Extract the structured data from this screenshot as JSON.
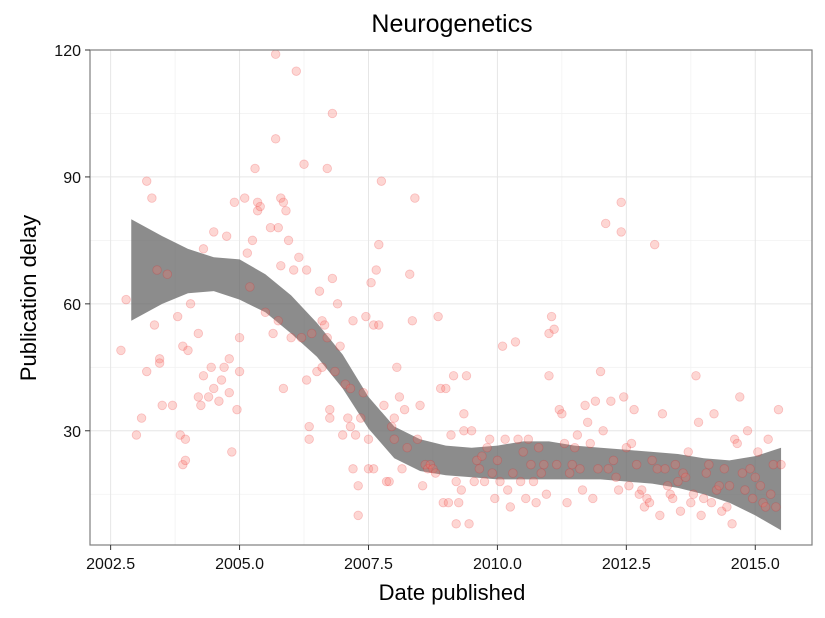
{
  "chart_data": {
    "type": "scatter",
    "title": "Neurogenetics",
    "xlabel": "Date published",
    "ylabel": "Publication delay",
    "xlim": [
      2002.1,
      2016.1
    ],
    "ylim": [
      3,
      120
    ],
    "x_ticks": [
      2002.5,
      2005.0,
      2007.5,
      2010.0,
      2012.5,
      2015.0
    ],
    "x_tick_labels": [
      "2002.5",
      "2005.0",
      "2007.5",
      "2010.0",
      "2012.5",
      "2015.0"
    ],
    "y_ticks": [
      30,
      60,
      90,
      120
    ],
    "y_tick_labels": [
      "30",
      "60",
      "90",
      "120"
    ],
    "grid": true,
    "point_color": "#f8766d",
    "smooth_color": "#666666",
    "points": [
      [
        2002.7,
        49
      ],
      [
        2002.8,
        61
      ],
      [
        2003.0,
        29
      ],
      [
        2003.1,
        33
      ],
      [
        2003.2,
        89
      ],
      [
        2003.2,
        44
      ],
      [
        2003.3,
        85
      ],
      [
        2003.35,
        55
      ],
      [
        2003.4,
        68
      ],
      [
        2003.45,
        47
      ],
      [
        2003.45,
        46
      ],
      [
        2003.5,
        36
      ],
      [
        2003.6,
        67
      ],
      [
        2003.7,
        36
      ],
      [
        2003.8,
        57
      ],
      [
        2003.85,
        29
      ],
      [
        2003.9,
        50
      ],
      [
        2003.9,
        22
      ],
      [
        2003.95,
        23
      ],
      [
        2003.95,
        28
      ],
      [
        2004.0,
        49
      ],
      [
        2004.05,
        60
      ],
      [
        2004.2,
        53
      ],
      [
        2004.2,
        38
      ],
      [
        2004.25,
        36
      ],
      [
        2004.3,
        73
      ],
      [
        2004.3,
        43
      ],
      [
        2004.4,
        38
      ],
      [
        2004.45,
        45
      ],
      [
        2004.5,
        77
      ],
      [
        2004.5,
        40
      ],
      [
        2004.6,
        37
      ],
      [
        2004.65,
        42
      ],
      [
        2004.7,
        45
      ],
      [
        2004.75,
        76
      ],
      [
        2004.8,
        47
      ],
      [
        2004.8,
        39
      ],
      [
        2004.85,
        25
      ],
      [
        2004.9,
        84
      ],
      [
        2004.95,
        35
      ],
      [
        2005.0,
        52
      ],
      [
        2005.0,
        44
      ],
      [
        2005.1,
        85
      ],
      [
        2005.15,
        72
      ],
      [
        2005.2,
        64
      ],
      [
        2005.25,
        75
      ],
      [
        2005.3,
        92
      ],
      [
        2005.35,
        84
      ],
      [
        2005.35,
        82
      ],
      [
        2005.4,
        83
      ],
      [
        2005.5,
        58
      ],
      [
        2005.6,
        78
      ],
      [
        2005.65,
        53
      ],
      [
        2005.7,
        119
      ],
      [
        2005.7,
        99
      ],
      [
        2005.75,
        78
      ],
      [
        2005.75,
        56
      ],
      [
        2005.8,
        85
      ],
      [
        2005.8,
        69
      ],
      [
        2005.85,
        40
      ],
      [
        2005.85,
        84
      ],
      [
        2005.9,
        82
      ],
      [
        2005.95,
        75
      ],
      [
        2006.0,
        52
      ],
      [
        2006.05,
        68
      ],
      [
        2006.1,
        115
      ],
      [
        2006.15,
        71
      ],
      [
        2006.2,
        52
      ],
      [
        2006.25,
        93
      ],
      [
        2006.3,
        68
      ],
      [
        2006.3,
        42
      ],
      [
        2006.35,
        31
      ],
      [
        2006.35,
        28
      ],
      [
        2006.4,
        53
      ],
      [
        2006.5,
        44
      ],
      [
        2006.55,
        63
      ],
      [
        2006.6,
        45
      ],
      [
        2006.6,
        56
      ],
      [
        2006.65,
        55
      ],
      [
        2006.7,
        52
      ],
      [
        2006.7,
        92
      ],
      [
        2006.75,
        35
      ],
      [
        2006.75,
        33
      ],
      [
        2006.8,
        66
      ],
      [
        2006.8,
        105
      ],
      [
        2006.85,
        44
      ],
      [
        2006.9,
        60
      ],
      [
        2006.95,
        50
      ],
      [
        2007.0,
        29
      ],
      [
        2007.05,
        41
      ],
      [
        2007.1,
        33
      ],
      [
        2007.15,
        40
      ],
      [
        2007.15,
        31
      ],
      [
        2007.2,
        56
      ],
      [
        2007.2,
        21
      ],
      [
        2007.25,
        29
      ],
      [
        2007.3,
        17
      ],
      [
        2007.3,
        10
      ],
      [
        2007.35,
        33
      ],
      [
        2007.4,
        39
      ],
      [
        2007.45,
        57
      ],
      [
        2007.5,
        21
      ],
      [
        2007.5,
        28
      ],
      [
        2007.55,
        65
      ],
      [
        2007.6,
        55
      ],
      [
        2007.6,
        21
      ],
      [
        2007.65,
        68
      ],
      [
        2007.7,
        74
      ],
      [
        2007.7,
        55
      ],
      [
        2007.75,
        89
      ],
      [
        2007.8,
        36
      ],
      [
        2007.85,
        18
      ],
      [
        2007.9,
        18
      ],
      [
        2007.95,
        31
      ],
      [
        2008.0,
        33
      ],
      [
        2008.0,
        28
      ],
      [
        2008.05,
        45
      ],
      [
        2008.1,
        38
      ],
      [
        2008.15,
        21
      ],
      [
        2008.2,
        35
      ],
      [
        2008.25,
        26
      ],
      [
        2008.3,
        67
      ],
      [
        2008.35,
        56
      ],
      [
        2008.4,
        85
      ],
      [
        2008.45,
        28
      ],
      [
        2008.5,
        36
      ],
      [
        2008.55,
        17
      ],
      [
        2008.6,
        22
      ],
      [
        2008.65,
        21
      ],
      [
        2008.7,
        22
      ],
      [
        2008.75,
        21
      ],
      [
        2008.8,
        20
      ],
      [
        2008.85,
        57
      ],
      [
        2008.9,
        40
      ],
      [
        2008.95,
        13
      ],
      [
        2009.0,
        40
      ],
      [
        2009.05,
        13
      ],
      [
        2009.1,
        29
      ],
      [
        2009.15,
        43
      ],
      [
        2009.2,
        18
      ],
      [
        2009.2,
        8
      ],
      [
        2009.25,
        13
      ],
      [
        2009.3,
        16
      ],
      [
        2009.35,
        34
      ],
      [
        2009.35,
        30
      ],
      [
        2009.4,
        43
      ],
      [
        2009.45,
        8
      ],
      [
        2009.5,
        30
      ],
      [
        2009.55,
        18
      ],
      [
        2009.6,
        23
      ],
      [
        2009.65,
        21
      ],
      [
        2009.7,
        24
      ],
      [
        2009.75,
        18
      ],
      [
        2009.8,
        26
      ],
      [
        2009.85,
        28
      ],
      [
        2009.9,
        20
      ],
      [
        2009.95,
        14
      ],
      [
        2010.0,
        23
      ],
      [
        2010.05,
        18
      ],
      [
        2010.1,
        50
      ],
      [
        2010.15,
        28
      ],
      [
        2010.2,
        16
      ],
      [
        2010.25,
        12
      ],
      [
        2010.3,
        20
      ],
      [
        2010.35,
        51
      ],
      [
        2010.4,
        28
      ],
      [
        2010.45,
        18
      ],
      [
        2010.5,
        25
      ],
      [
        2010.55,
        14
      ],
      [
        2010.6,
        28
      ],
      [
        2010.65,
        22
      ],
      [
        2010.7,
        18
      ],
      [
        2010.75,
        13
      ],
      [
        2010.8,
        26
      ],
      [
        2010.85,
        20
      ],
      [
        2010.9,
        22
      ],
      [
        2010.95,
        15
      ],
      [
        2011.0,
        53
      ],
      [
        2011.0,
        43
      ],
      [
        2011.05,
        57
      ],
      [
        2011.1,
        54
      ],
      [
        2011.15,
        22
      ],
      [
        2011.2,
        35
      ],
      [
        2011.25,
        34
      ],
      [
        2011.3,
        27
      ],
      [
        2011.35,
        13
      ],
      [
        2011.4,
        20
      ],
      [
        2011.45,
        22
      ],
      [
        2011.5,
        26
      ],
      [
        2011.55,
        29
      ],
      [
        2011.6,
        21
      ],
      [
        2011.65,
        16
      ],
      [
        2011.7,
        36
      ],
      [
        2011.75,
        32
      ],
      [
        2011.8,
        27
      ],
      [
        2011.85,
        14
      ],
      [
        2011.9,
        37
      ],
      [
        2011.95,
        21
      ],
      [
        2012.0,
        44
      ],
      [
        2012.05,
        30
      ],
      [
        2012.1,
        79
      ],
      [
        2012.15,
        21
      ],
      [
        2012.2,
        37
      ],
      [
        2012.25,
        23
      ],
      [
        2012.3,
        19
      ],
      [
        2012.35,
        16
      ],
      [
        2012.4,
        84
      ],
      [
        2012.4,
        77
      ],
      [
        2012.45,
        38
      ],
      [
        2012.5,
        26
      ],
      [
        2012.55,
        17
      ],
      [
        2012.6,
        27
      ],
      [
        2012.65,
        35
      ],
      [
        2012.7,
        22
      ],
      [
        2012.75,
        15
      ],
      [
        2012.8,
        16
      ],
      [
        2012.85,
        12
      ],
      [
        2012.9,
        14
      ],
      [
        2012.95,
        13
      ],
      [
        2013.0,
        23
      ],
      [
        2013.05,
        74
      ],
      [
        2013.1,
        21
      ],
      [
        2013.15,
        10
      ],
      [
        2013.2,
        34
      ],
      [
        2013.25,
        21
      ],
      [
        2013.3,
        17
      ],
      [
        2013.35,
        15
      ],
      [
        2013.4,
        14
      ],
      [
        2013.45,
        22
      ],
      [
        2013.5,
        18
      ],
      [
        2013.55,
        11
      ],
      [
        2013.6,
        20
      ],
      [
        2013.65,
        19
      ],
      [
        2013.7,
        25
      ],
      [
        2013.75,
        13
      ],
      [
        2013.8,
        15
      ],
      [
        2013.85,
        43
      ],
      [
        2013.9,
        32
      ],
      [
        2013.95,
        10
      ],
      [
        2014.0,
        14
      ],
      [
        2014.05,
        20
      ],
      [
        2014.1,
        22
      ],
      [
        2014.15,
        13
      ],
      [
        2014.2,
        34
      ],
      [
        2014.25,
        16
      ],
      [
        2014.3,
        17
      ],
      [
        2014.35,
        11
      ],
      [
        2014.4,
        21
      ],
      [
        2014.45,
        12
      ],
      [
        2014.5,
        17
      ],
      [
        2014.55,
        8
      ],
      [
        2014.6,
        28
      ],
      [
        2014.65,
        27
      ],
      [
        2014.7,
        38
      ],
      [
        2014.75,
        20
      ],
      [
        2014.8,
        16
      ],
      [
        2014.85,
        30
      ],
      [
        2014.9,
        21
      ],
      [
        2014.95,
        14
      ],
      [
        2015.0,
        19
      ],
      [
        2015.05,
        25
      ],
      [
        2015.1,
        17
      ],
      [
        2015.15,
        13
      ],
      [
        2015.2,
        12
      ],
      [
        2015.25,
        28
      ],
      [
        2015.3,
        15
      ],
      [
        2015.35,
        22
      ],
      [
        2015.4,
        12
      ],
      [
        2015.45,
        35
      ],
      [
        2015.5,
        22
      ]
    ],
    "smooth_band": [
      {
        "x": 2002.9,
        "lower": 56,
        "upper": 80
      },
      {
        "x": 2003.5,
        "lower": 60,
        "upper": 76
      },
      {
        "x": 2004.0,
        "lower": 62.5,
        "upper": 73
      },
      {
        "x": 2004.5,
        "lower": 63,
        "upper": 71
      },
      {
        "x": 2005.0,
        "lower": 61,
        "upper": 70.5
      },
      {
        "x": 2005.5,
        "lower": 58,
        "upper": 67
      },
      {
        "x": 2006.0,
        "lower": 53,
        "upper": 62
      },
      {
        "x": 2006.5,
        "lower": 47.5,
        "upper": 55.5
      },
      {
        "x": 2007.0,
        "lower": 40,
        "upper": 48
      },
      {
        "x": 2007.5,
        "lower": 30.5,
        "upper": 38
      },
      {
        "x": 2008.0,
        "lower": 23.5,
        "upper": 31
      },
      {
        "x": 2008.5,
        "lower": 20.5,
        "upper": 28
      },
      {
        "x": 2009.0,
        "lower": 19.5,
        "upper": 26.5
      },
      {
        "x": 2009.5,
        "lower": 19,
        "upper": 26
      },
      {
        "x": 2010.0,
        "lower": 18.5,
        "upper": 26.5
      },
      {
        "x": 2010.5,
        "lower": 18.5,
        "upper": 27.5
      },
      {
        "x": 2011.0,
        "lower": 18.5,
        "upper": 27.5
      },
      {
        "x": 2011.5,
        "lower": 18.5,
        "upper": 26.5
      },
      {
        "x": 2012.0,
        "lower": 18.5,
        "upper": 26
      },
      {
        "x": 2012.5,
        "lower": 18,
        "upper": 25.5
      },
      {
        "x": 2013.0,
        "lower": 17.5,
        "upper": 25
      },
      {
        "x": 2013.5,
        "lower": 16.5,
        "upper": 24.5
      },
      {
        "x": 2014.0,
        "lower": 15,
        "upper": 23.5
      },
      {
        "x": 2014.5,
        "lower": 13,
        "upper": 23
      },
      {
        "x": 2015.0,
        "lower": 10,
        "upper": 24
      },
      {
        "x": 2015.5,
        "lower": 6.5,
        "upper": 26
      }
    ]
  }
}
